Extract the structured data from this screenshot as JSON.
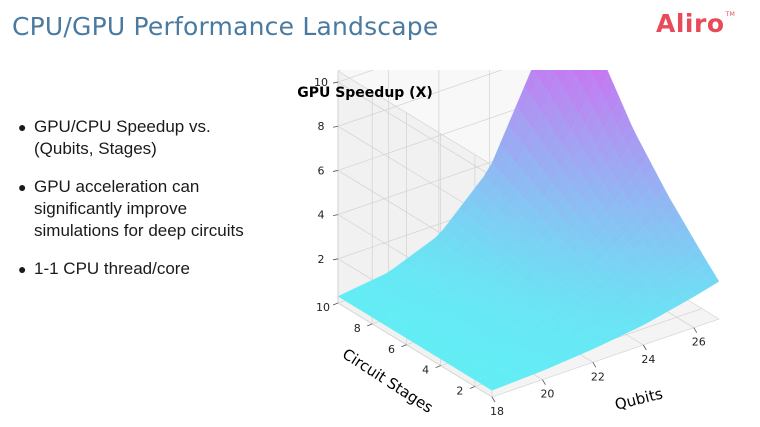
{
  "slide": {
    "title": "CPU/GPU Performance Landscape",
    "logo_text": "Aliro",
    "logo_mark": "TM",
    "bullets": [
      {
        "text": "GPU/CPU Speedup vs.\n(Qubits, Stages)"
      },
      {
        "text": "GPU acceleration can\nsignificantly improve\nsimulations for deep circuits"
      },
      {
        "text": "1-1 CPU thread/core"
      }
    ],
    "bullet_glyph": "●"
  },
  "colors": {
    "title": "#4a7aa0",
    "logo": "#e84a5a",
    "surface_low": "#5ef2f5",
    "surface_high": "#e455f0"
  },
  "chart_data": {
    "type": "surface3d",
    "title": "GPU Speedup (X)",
    "xlabel": "Qubits",
    "ylabel": "Circuit Stages",
    "zlabel": "",
    "x_ticks": [
      "18",
      "20",
      "22",
      "24",
      "26"
    ],
    "y_ticks": [
      "2",
      "4",
      "6",
      "8",
      "10"
    ],
    "z_ticks": [
      "2",
      "4",
      "6",
      "8",
      "10"
    ],
    "xlim": [
      18,
      27
    ],
    "ylim": [
      1,
      10
    ],
    "zlim": [
      0,
      10.5
    ],
    "grid": true,
    "colormap": "cool",
    "x": [
      18,
      20,
      22,
      24,
      26,
      27
    ],
    "y": [
      1,
      2,
      4,
      6,
      8,
      10
    ],
    "z": [
      [
        0.3,
        0.4,
        0.6,
        0.9,
        1.4,
        1.7
      ],
      [
        0.3,
        0.4,
        0.7,
        1.2,
        2.0,
        2.5
      ],
      [
        0.3,
        0.5,
        0.9,
        1.7,
        3.2,
        4.2
      ],
      [
        0.3,
        0.5,
        1.1,
        2.3,
        4.8,
        6.2
      ],
      [
        0.3,
        0.6,
        1.3,
        3.0,
        6.6,
        8.8
      ],
      [
        0.3,
        0.6,
        1.5,
        3.7,
        8.3,
        10.5
      ]
    ]
  }
}
